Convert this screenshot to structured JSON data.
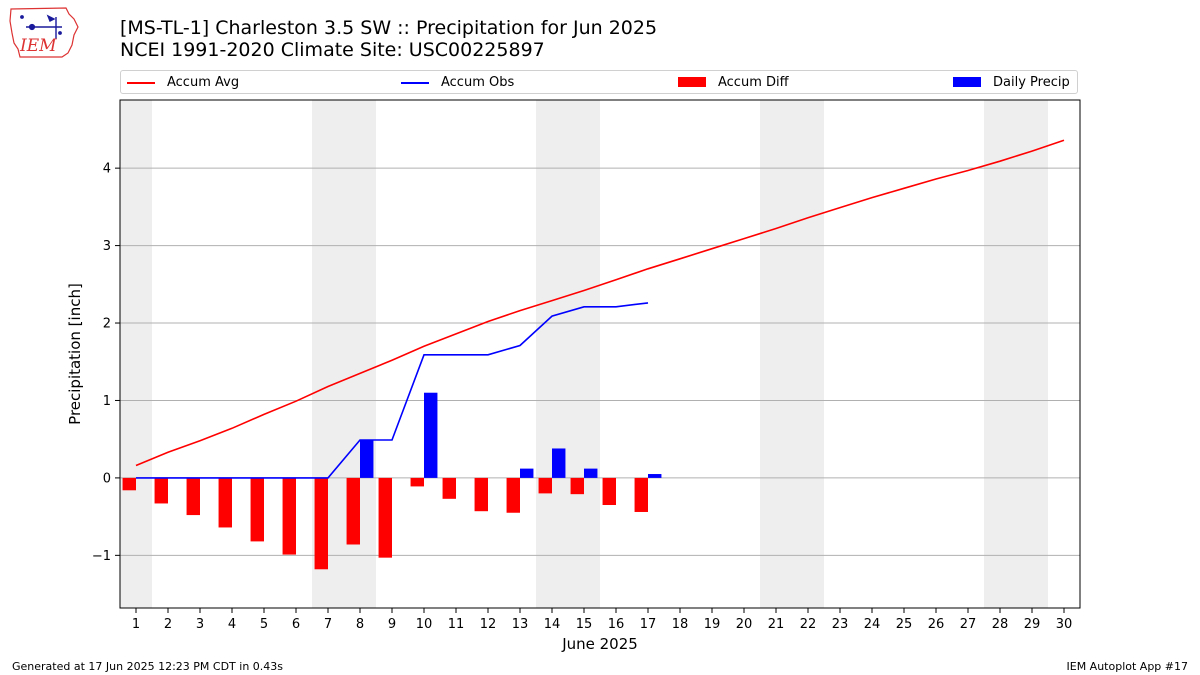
{
  "header": {
    "title_line1": "[MS-TL-1] Charleston 3.5 SW :: Precipitation for Jun 2025",
    "title_line2": "NCEI 1991-2020 Climate Site: USC00225897",
    "logo_text": "IEM"
  },
  "legend": {
    "accum_avg": "Accum Avg",
    "accum_obs": "Accum Obs",
    "accum_diff": "Accum Diff",
    "daily_precip": "Daily Precip"
  },
  "colors": {
    "avg": "#ff0000",
    "obs": "#0000ff",
    "diff": "#ff0000",
    "precip": "#0000ff",
    "weekend_shade": "#eeeeee",
    "grid": "#b0b0b0"
  },
  "footer": {
    "left": "Generated at 17 Jun 2025 12:23 PM CDT in 0.43s",
    "right": "IEM Autoplot App #17"
  },
  "chart_data": {
    "type": "bar",
    "xlabel": "June 2025",
    "ylabel": "Precipitation [inch]",
    "xlim": [
      0.5,
      30.5
    ],
    "ylim": [
      -1.68,
      4.88
    ],
    "x": [
      1,
      2,
      3,
      4,
      5,
      6,
      7,
      8,
      9,
      10,
      11,
      12,
      13,
      14,
      15,
      16,
      17,
      18,
      19,
      20,
      21,
      22,
      23,
      24,
      25,
      26,
      27,
      28,
      29,
      30
    ],
    "x_tick_labels": [
      "1",
      "2",
      "3",
      "4",
      "5",
      "6",
      "7",
      "8",
      "9",
      "10",
      "11",
      "12",
      "13",
      "14",
      "15",
      "16",
      "17",
      "18",
      "19",
      "20",
      "21",
      "22",
      "23",
      "24",
      "25",
      "26",
      "27",
      "28",
      "29",
      "30"
    ],
    "y_ticks": [
      -1,
      0,
      1,
      2,
      3,
      4
    ],
    "y_tick_labels": [
      "−1",
      "0",
      "1",
      "2",
      "3",
      "4"
    ],
    "grid": "y",
    "weekend_spans": [
      [
        0.5,
        1.5
      ],
      [
        6.5,
        8.5
      ],
      [
        13.5,
        15.5
      ],
      [
        20.5,
        22.5
      ],
      [
        27.5,
        29.5
      ]
    ],
    "legend_position": "top",
    "series": [
      {
        "name": "Accum Avg",
        "kind": "line",
        "x": [
          1,
          2,
          3,
          4,
          5,
          6,
          7,
          8,
          9,
          10,
          11,
          12,
          13,
          14,
          15,
          16,
          17,
          18,
          19,
          20,
          21,
          22,
          23,
          24,
          25,
          26,
          27,
          28,
          29,
          30
        ],
        "values": [
          0.16,
          0.33,
          0.48,
          0.64,
          0.82,
          0.99,
          1.18,
          1.35,
          1.52,
          1.7,
          1.86,
          2.02,
          2.16,
          2.29,
          2.42,
          2.56,
          2.7,
          2.83,
          2.96,
          3.09,
          3.22,
          3.36,
          3.49,
          3.62,
          3.74,
          3.86,
          3.97,
          4.09,
          4.22,
          4.36
        ]
      },
      {
        "name": "Accum Obs",
        "kind": "line",
        "x": [
          1,
          2,
          3,
          4,
          5,
          6,
          7,
          8,
          9,
          10,
          11,
          12,
          13,
          14,
          15,
          16,
          17
        ],
        "values": [
          0.0,
          0.0,
          0.0,
          0.0,
          0.0,
          0.0,
          0.0,
          0.49,
          0.49,
          1.59,
          1.59,
          1.59,
          1.71,
          2.09,
          2.21,
          2.21,
          2.26
        ]
      },
      {
        "name": "Accum Diff",
        "kind": "bar",
        "x": [
          1,
          2,
          3,
          4,
          5,
          6,
          7,
          8,
          9,
          10,
          11,
          12,
          13,
          14,
          15,
          16,
          17
        ],
        "values": [
          -0.16,
          -0.33,
          -0.48,
          -0.64,
          -0.82,
          -0.99,
          -1.18,
          -0.86,
          -1.03,
          -0.11,
          -0.27,
          -0.43,
          -0.45,
          -0.2,
          -0.21,
          -0.35,
          -0.44
        ]
      },
      {
        "name": "Daily Precip",
        "kind": "bar",
        "x": [
          1,
          2,
          3,
          4,
          5,
          6,
          7,
          8,
          9,
          10,
          11,
          12,
          13,
          14,
          15,
          16,
          17
        ],
        "values": [
          0,
          0,
          0,
          0,
          0,
          0,
          0,
          0.49,
          0,
          1.1,
          0,
          0,
          0.12,
          0.38,
          0.12,
          0,
          0.05
        ]
      }
    ]
  }
}
